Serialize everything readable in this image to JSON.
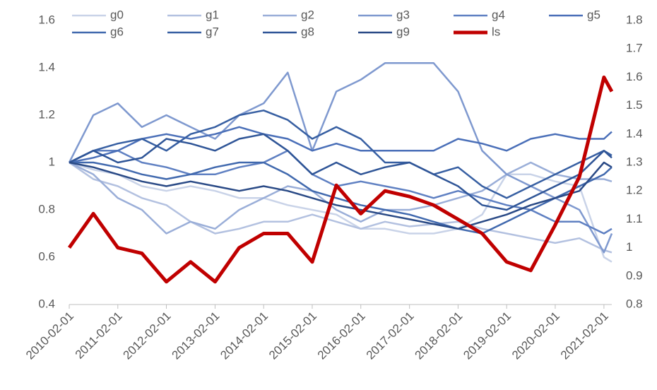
{
  "chart_data": {
    "type": "line",
    "x": [
      "2010-02-01",
      "2010-08-01",
      "2011-02-01",
      "2011-08-01",
      "2012-02-01",
      "2012-08-01",
      "2013-02-01",
      "2013-08-01",
      "2014-02-01",
      "2014-08-01",
      "2015-02-01",
      "2015-08-01",
      "2016-02-01",
      "2016-08-01",
      "2017-02-01",
      "2017-08-01",
      "2018-02-01",
      "2018-08-01",
      "2019-02-01",
      "2019-08-01",
      "2020-02-01",
      "2020-08-01",
      "2021-02-01",
      "2021-04-01"
    ],
    "xlim": [
      "2010-02-01",
      "2021-04-01"
    ],
    "xticks": [
      "2010-02-01",
      "2011-02-01",
      "2012-02-01",
      "2013-02-01",
      "2014-02-01",
      "2015-02-01",
      "2016-02-01",
      "2017-02-01",
      "2018-02-01",
      "2019-02-01",
      "2020-02-01",
      "2021-02-01"
    ],
    "ylim": [
      0.4,
      1.6
    ],
    "yticks": [
      0.4,
      0.6,
      0.8,
      1,
      1.2,
      1.4,
      1.6
    ],
    "y2lim": [
      0.8,
      1.8
    ],
    "y2ticks": [
      0.8,
      0.9,
      1,
      1.1,
      1.2,
      1.3,
      1.4,
      1.5,
      1.6,
      1.7,
      1.8
    ],
    "series": [
      {
        "name": "g0",
        "color": "#c9d3e8",
        "values": [
          1.0,
          0.97,
          0.95,
          0.9,
          0.88,
          0.9,
          0.88,
          0.85,
          0.85,
          0.82,
          0.8,
          0.78,
          0.72,
          0.72,
          0.7,
          0.7,
          0.72,
          0.78,
          0.95,
          0.95,
          0.92,
          0.9,
          0.6,
          0.58
        ]
      },
      {
        "name": "g1",
        "color": "#b3c1e0",
        "values": [
          1.0,
          0.93,
          0.9,
          0.85,
          0.82,
          0.75,
          0.7,
          0.72,
          0.75,
          0.75,
          0.78,
          0.75,
          0.72,
          0.75,
          0.73,
          0.74,
          0.75,
          0.72,
          0.7,
          0.68,
          0.66,
          0.68,
          0.63,
          0.62
        ]
      },
      {
        "name": "g2",
        "color": "#9aaed8",
        "values": [
          1.0,
          0.95,
          0.85,
          0.8,
          0.7,
          0.75,
          0.72,
          0.8,
          0.85,
          0.9,
          0.88,
          0.8,
          0.75,
          0.8,
          0.8,
          0.82,
          0.85,
          0.88,
          0.95,
          1.0,
          0.95,
          0.93,
          0.93,
          0.92
        ]
      },
      {
        "name": "g3",
        "color": "#7f99cf",
        "values": [
          1.0,
          1.2,
          1.25,
          1.15,
          1.2,
          1.15,
          1.1,
          1.2,
          1.25,
          1.38,
          1.05,
          1.3,
          1.35,
          1.42,
          1.42,
          1.42,
          1.3,
          1.05,
          0.95,
          0.9,
          0.85,
          0.8,
          0.62,
          0.7
        ]
      },
      {
        "name": "g4",
        "color": "#5f80c2",
        "values": [
          1.0,
          1.05,
          1.05,
          1.0,
          0.98,
          0.95,
          0.95,
          0.98,
          1.0,
          1.05,
          0.95,
          0.9,
          0.92,
          0.9,
          0.88,
          0.85,
          0.88,
          0.85,
          0.82,
          0.8,
          0.75,
          0.75,
          0.7,
          0.72
        ]
      },
      {
        "name": "g5",
        "color": "#4a6fb8",
        "values": [
          1.0,
          1.02,
          1.05,
          1.1,
          1.12,
          1.1,
          1.12,
          1.15,
          1.12,
          1.1,
          1.05,
          1.08,
          1.05,
          1.05,
          1.05,
          1.05,
          1.1,
          1.08,
          1.05,
          1.1,
          1.12,
          1.1,
          1.1,
          1.13
        ]
      },
      {
        "name": "g6",
        "color": "#4169ae",
        "values": [
          1.0,
          1.0,
          0.98,
          0.95,
          0.93,
          0.95,
          0.98,
          1.0,
          1.0,
          0.95,
          0.88,
          0.85,
          0.82,
          0.8,
          0.78,
          0.75,
          0.72,
          0.7,
          0.75,
          0.8,
          0.85,
          0.9,
          0.95,
          0.98
        ]
      },
      {
        "name": "g7",
        "color": "#375fa2",
        "values": [
          1.0,
          1.05,
          1.08,
          1.1,
          1.05,
          1.12,
          1.15,
          1.2,
          1.22,
          1.18,
          1.1,
          1.15,
          1.1,
          1.0,
          1.0,
          0.95,
          0.98,
          0.9,
          0.85,
          0.9,
          0.95,
          1.0,
          1.05,
          1.03
        ]
      },
      {
        "name": "g8",
        "color": "#2f5597",
        "values": [
          1.0,
          1.05,
          1.0,
          1.02,
          1.1,
          1.08,
          1.05,
          1.1,
          1.12,
          1.05,
          0.95,
          1.0,
          0.95,
          0.98,
          1.0,
          0.95,
          0.9,
          0.82,
          0.8,
          0.85,
          0.9,
          0.95,
          1.05,
          1.02
        ]
      },
      {
        "name": "g9",
        "color": "#2a4a86",
        "values": [
          1.0,
          0.98,
          0.95,
          0.92,
          0.9,
          0.92,
          0.9,
          0.88,
          0.9,
          0.88,
          0.85,
          0.82,
          0.8,
          0.78,
          0.76,
          0.74,
          0.72,
          0.75,
          0.78,
          0.82,
          0.85,
          0.88,
          1.0,
          0.98
        ]
      },
      {
        "name": "ls",
        "color": "#c00000",
        "axis": "y2",
        "values": [
          1.0,
          1.12,
          1.0,
          0.98,
          0.88,
          0.95,
          0.88,
          1.0,
          1.05,
          1.05,
          0.95,
          1.22,
          1.12,
          1.2,
          1.18,
          1.15,
          1.1,
          1.05,
          0.95,
          0.92,
          1.08,
          1.25,
          1.6,
          1.55
        ]
      }
    ]
  }
}
